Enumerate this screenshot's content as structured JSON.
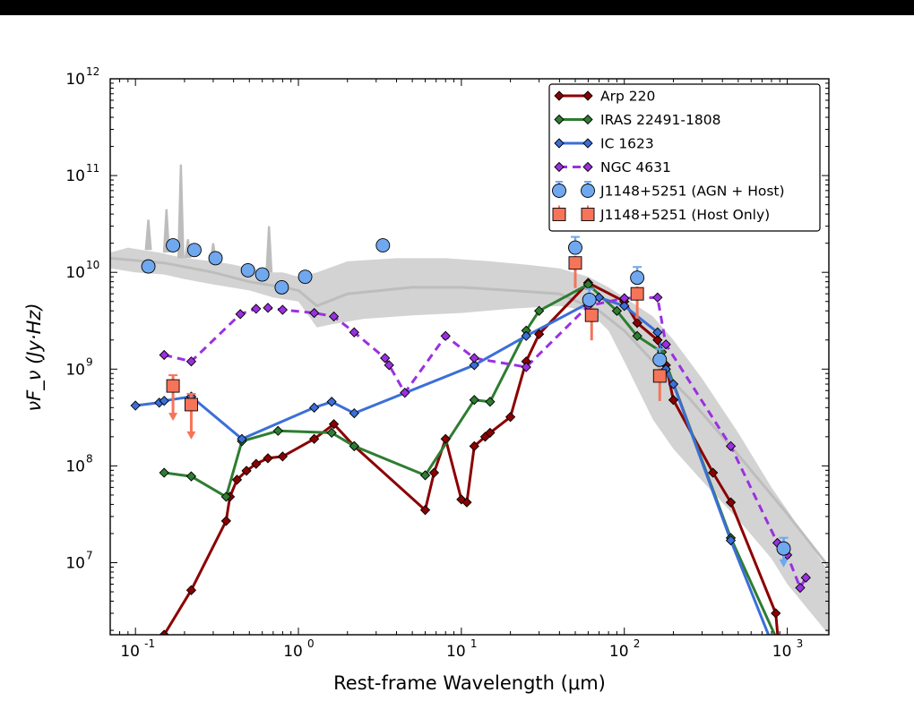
{
  "chart_data": {
    "type": "line",
    "xlabel": "Rest-frame Wavelength (μm)",
    "ylabel": "νF_ν (Jy·Hz)",
    "xscale": "log",
    "yscale": "log",
    "xlim": [
      0.07,
      1800
    ],
    "ylim": [
      1800000,
      1000000000000
    ],
    "grid": false,
    "legend_position": "top-right",
    "x_ticks": [
      {
        "value": 0.1,
        "base": "10",
        "exp": "-1"
      },
      {
        "value": 1,
        "base": "10",
        "exp": "0"
      },
      {
        "value": 10,
        "base": "10",
        "exp": "1"
      },
      {
        "value": 100,
        "base": "10",
        "exp": "2"
      },
      {
        "value": 1000,
        "base": "10",
        "exp": "3"
      }
    ],
    "y_ticks": [
      {
        "value": 10000000,
        "base": "10",
        "exp": "7"
      },
      {
        "value": 100000000,
        "base": "10",
        "exp": "8"
      },
      {
        "value": 1000000000,
        "base": "10",
        "exp": "9"
      },
      {
        "value": 10000000000,
        "base": "10",
        "exp": "10"
      },
      {
        "value": 100000000000,
        "base": "10",
        "exp": "11"
      },
      {
        "value": 1000000000000,
        "base": "10",
        "exp": "12"
      }
    ],
    "band": {
      "color": "#d3d3d3",
      "median_color": "#bdbdbd",
      "upper": [
        [
          0.07,
          16000000000.0
        ],
        [
          0.09,
          18000000000.0
        ],
        [
          0.11,
          17000000000.0
        ],
        [
          0.14,
          16000000000.0
        ],
        [
          0.2,
          14000000000.0
        ],
        [
          0.3,
          13000000000.0
        ],
        [
          0.4,
          12000000000.0
        ],
        [
          0.5,
          11000000000.0
        ],
        [
          0.7,
          10000000000.0
        ],
        [
          0.8,
          10000000000.0
        ],
        [
          1.0,
          9000000000.0
        ],
        [
          1.3,
          10000000000.0
        ],
        [
          2.0,
          13000000000.0
        ],
        [
          4,
          14000000000.0
        ],
        [
          8,
          14000000000.0
        ],
        [
          15,
          13000000000.0
        ],
        [
          25,
          12000000000.0
        ],
        [
          40,
          11000000000.0
        ],
        [
          60,
          9000000000.0
        ],
        [
          80,
          7000000000.0
        ],
        [
          100,
          5500000000.0
        ],
        [
          150,
          3500000000.0
        ],
        [
          200,
          2000000000.0
        ],
        [
          300,
          800000000.0
        ],
        [
          500,
          220000000.0
        ],
        [
          800,
          60000000.0
        ],
        [
          1000,
          35000000.0
        ],
        [
          1800,
          8000000.0
        ]
      ],
      "lower": [
        [
          0.07,
          11000000000.0
        ],
        [
          0.1,
          10000000000.0
        ],
        [
          0.15,
          9500000000.0
        ],
        [
          0.2,
          8500000000.0
        ],
        [
          0.3,
          7500000000.0
        ],
        [
          0.5,
          6500000000.0
        ],
        [
          0.7,
          5500000000.0
        ],
        [
          1.0,
          5000000000.0
        ],
        [
          1.3,
          2700000000.0
        ],
        [
          1.6,
          2900000000.0
        ],
        [
          2.5,
          3300000000.0
        ],
        [
          5,
          3600000000.0
        ],
        [
          10,
          3800000000.0
        ],
        [
          20,
          4200000000.0
        ],
        [
          40,
          4500000000.0
        ],
        [
          60,
          4000000000.0
        ],
        [
          80,
          2500000000.0
        ],
        [
          100,
          1200000000.0
        ],
        [
          150,
          300000000.0
        ],
        [
          200,
          150000000.0
        ],
        [
          300,
          70000000.0
        ],
        [
          500,
          28000000.0
        ],
        [
          800,
          11000000.0
        ],
        [
          1000,
          6000000.0
        ],
        [
          1800,
          1800000.0
        ]
      ],
      "median": [
        [
          0.07,
          14000000000.0
        ],
        [
          0.15,
          12500000000.0
        ],
        [
          0.3,
          10000000000.0
        ],
        [
          0.5,
          8000000000.0
        ],
        [
          0.8,
          7000000000.0
        ],
        [
          1.0,
          6500000000.0
        ],
        [
          1.3,
          4500000000.0
        ],
        [
          2,
          6000000000.0
        ],
        [
          5,
          7000000000.0
        ],
        [
          10,
          7000000000.0
        ],
        [
          20,
          6500000000.0
        ],
        [
          40,
          6000000000.0
        ],
        [
          70,
          4000000000.0
        ],
        [
          100,
          2500000000.0
        ],
        [
          150,
          1200000000.0
        ],
        [
          250,
          500000000.0
        ],
        [
          500,
          130000000.0
        ],
        [
          1000,
          32000000.0
        ],
        [
          1800,
          9000000.0
        ]
      ],
      "spikes": [
        [
          0.12,
          35000000000.0
        ],
        [
          0.155,
          45000000000.0
        ],
        [
          0.19,
          130000000000.0
        ],
        [
          0.21,
          22000000000.0
        ],
        [
          0.3,
          20000000000.0
        ],
        [
          0.66,
          30000000000.0
        ]
      ]
    },
    "series": [
      {
        "name": "Arp 220",
        "color": "#8b0000",
        "style": "solid",
        "marker": "diamond",
        "points": [
          [
            0.11,
            1600000.0
          ],
          [
            0.15,
            1800000.0
          ],
          [
            0.22,
            5200000.0
          ],
          [
            0.36,
            27000000.0
          ],
          [
            0.38,
            48000000.0
          ],
          [
            0.42,
            72000000.0
          ],
          [
            0.48,
            89000000.0
          ],
          [
            0.55,
            105000000.0
          ],
          [
            0.65,
            120000000.0
          ],
          [
            0.8,
            125000000.0
          ],
          [
            1.25,
            190000000.0
          ],
          [
            1.65,
            270000000.0
          ],
          [
            2.2,
            160000000.0
          ],
          [
            6,
            35000000.0
          ],
          [
            6.8,
            85000000.0
          ],
          [
            8,
            190000000.0
          ],
          [
            10,
            45000000.0
          ],
          [
            10.8,
            42000000.0
          ],
          [
            12,
            160000000.0
          ],
          [
            14,
            200000000.0
          ],
          [
            15,
            220000000.0
          ],
          [
            20,
            320000000.0
          ],
          [
            25,
            1200000000.0
          ],
          [
            30,
            2300000000.0
          ],
          [
            60,
            7800000000.0
          ],
          [
            100,
            5000000000.0
          ],
          [
            120,
            3000000000.0
          ],
          [
            160,
            2000000000.0
          ],
          [
            180,
            1100000000.0
          ],
          [
            200,
            480000000.0
          ],
          [
            350,
            85000000.0
          ],
          [
            450,
            42000000.0
          ],
          [
            850,
            3000000.0
          ],
          [
            900,
            1000000.0
          ]
        ]
      },
      {
        "name": "IRAS 22491-1808",
        "color": "#2e7d32",
        "style": "solid",
        "marker": "diamond",
        "points": [
          [
            0.15,
            85000000.0
          ],
          [
            0.22,
            78000000.0
          ],
          [
            0.36,
            48000000.0
          ],
          [
            0.45,
            180000000.0
          ],
          [
            0.75,
            230000000.0
          ],
          [
            1.6,
            220000000.0
          ],
          [
            2.2,
            160000000.0
          ],
          [
            6,
            80000000.0
          ],
          [
            12,
            480000000.0
          ],
          [
            15,
            460000000.0
          ],
          [
            25,
            2500000000.0
          ],
          [
            30,
            4000000000.0
          ],
          [
            60,
            7500000000.0
          ],
          [
            90,
            4000000000.0
          ],
          [
            120,
            2200000000.0
          ],
          [
            170,
            1500000000.0
          ],
          [
            450,
            18000000.0
          ],
          [
            880,
            1500000.0
          ]
        ]
      },
      {
        "name": "IC 1623",
        "color": "#3b6fd8",
        "style": "solid",
        "marker": "diamond",
        "points": [
          [
            0.1,
            420000000.0
          ],
          [
            0.14,
            450000000.0
          ],
          [
            0.15,
            470000000.0
          ],
          [
            0.22,
            520000000.0
          ],
          [
            0.45,
            190000000.0
          ],
          [
            1.25,
            400000000.0
          ],
          [
            1.6,
            460000000.0
          ],
          [
            2.2,
            350000000.0
          ],
          [
            12,
            1100000000.0
          ],
          [
            25,
            2200000000.0
          ],
          [
            70,
            5500000000.0
          ],
          [
            100,
            4500000000.0
          ],
          [
            160,
            2400000000.0
          ],
          [
            180,
            1000000000.0
          ],
          [
            200,
            700000000.0
          ],
          [
            450,
            17000000.0
          ],
          [
            800,
            1500000.0
          ]
        ]
      },
      {
        "name": "NGC 4631",
        "color": "#9b30e0",
        "style": "dashed",
        "marker": "diamond",
        "points": [
          [
            0.15,
            1400000000.0
          ],
          [
            0.22,
            1200000000.0
          ],
          [
            0.44,
            3700000000.0
          ],
          [
            0.55,
            4200000000.0
          ],
          [
            0.65,
            4300000000.0
          ],
          [
            0.8,
            4100000000.0
          ],
          [
            1.25,
            3800000000.0
          ],
          [
            1.65,
            3500000000.0
          ],
          [
            2.2,
            2400000000.0
          ],
          [
            3.4,
            1300000000.0
          ],
          [
            3.6,
            1100000000.0
          ],
          [
            4.5,
            570000000.0
          ],
          [
            8,
            2200000000.0
          ],
          [
            12,
            1300000000.0
          ],
          [
            25,
            1050000000.0
          ],
          [
            60,
            4500000000.0
          ],
          [
            100,
            5400000000.0
          ],
          [
            160,
            5500000000.0
          ],
          [
            180,
            1800000000.0
          ],
          [
            450,
            160000000.0
          ],
          [
            870,
            16000000.0
          ],
          [
            1000,
            12000000.0
          ],
          [
            1200,
            5500000.0
          ],
          [
            1300,
            7000000.0
          ]
        ]
      }
    ],
    "points_series": [
      {
        "name": "J1148+5251 (AGN + Host)",
        "color": "#6fa8ef",
        "marker": "circle",
        "points": [
          [
            0.12,
            11500000000.0
          ],
          [
            0.17,
            19000000000.0
          ],
          [
            0.23,
            17000000000.0
          ],
          [
            0.31,
            14000000000.0
          ],
          [
            0.49,
            10500000000.0
          ],
          [
            0.6,
            9500000000.0
          ],
          [
            0.79,
            7000000000.0
          ],
          [
            1.1,
            9000000000.0
          ],
          [
            3.3,
            19000000000.0
          ],
          [
            50,
            18000000000.0
          ],
          [
            61,
            5200000000.0
          ],
          [
            120,
            8800000000.0
          ],
          [
            165,
            1250000000.0
          ],
          [
            950,
            14000000.0
          ]
        ],
        "upper_limit_index": 13
      },
      {
        "name": "J1148+5251 (Host Only)",
        "color": "#f5745a",
        "marker": "square",
        "points": [
          [
            0.17,
            670000000.0
          ],
          [
            0.22,
            430000000.0
          ],
          [
            50,
            12500000000.0
          ],
          [
            63,
            3600000000.0
          ],
          [
            120,
            6000000000.0
          ],
          [
            165,
            850000000.0
          ]
        ],
        "upper_limit_indices": [
          0,
          1
        ]
      }
    ]
  }
}
